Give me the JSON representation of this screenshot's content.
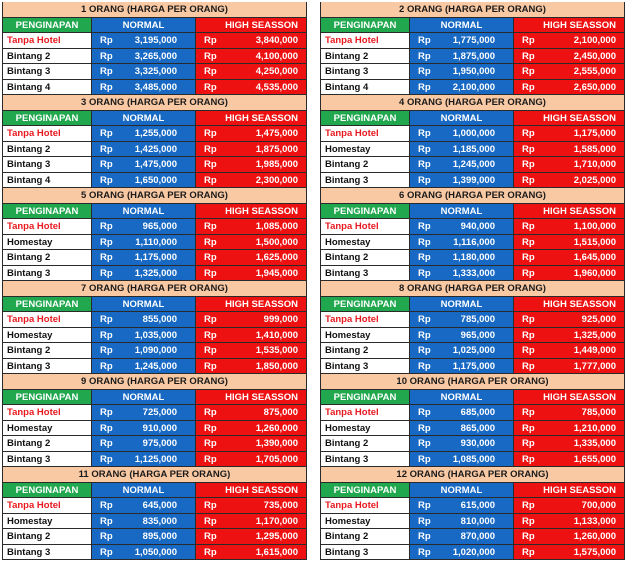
{
  "header_labels": {
    "accommodation": "PENGINAPAN",
    "normal": "NORMAL",
    "high_season": "HIGH SEASSON",
    "currency": "Rp"
  },
  "tables": [
    {
      "title": "1 ORANG (HARGA PER ORANG)",
      "rows": [
        {
          "name": "Tanpa Hotel",
          "normal": "3,195,000",
          "high": "3,840,000"
        },
        {
          "name": "Bintang 2",
          "normal": "3,265,000",
          "high": "4,100,000"
        },
        {
          "name": "Bintang 3",
          "normal": "3,325,000",
          "high": "4,250,000"
        },
        {
          "name": "Bintang 4",
          "normal": "3,485,000",
          "high": "4,535,000"
        }
      ]
    },
    {
      "title": "2 ORANG (HARGA PER ORANG)",
      "rows": [
        {
          "name": "Tanpa Hotel",
          "normal": "1,775,000",
          "high": "2,100,000"
        },
        {
          "name": "Bintang 2",
          "normal": "1,875,000",
          "high": "2,450,000"
        },
        {
          "name": "Bintang 3",
          "normal": "1,950,000",
          "high": "2,555,000"
        },
        {
          "name": "Bintang 4",
          "normal": "2,100,000",
          "high": "2,650,000"
        }
      ]
    },
    {
      "title": "3 ORANG (HARGA PER ORANG)",
      "rows": [
        {
          "name": "Tanpa Hotel",
          "normal": "1,255,000",
          "high": "1,475,000"
        },
        {
          "name": "Bintang 2",
          "normal": "1,425,000",
          "high": "1,875,000"
        },
        {
          "name": "Bintang 3",
          "normal": "1,475,000",
          "high": "1,985,000"
        },
        {
          "name": "Bintang 4",
          "normal": "1,650,000",
          "high": "2,300,000"
        }
      ]
    },
    {
      "title": "4 ORANG (HARGA PER ORANG)",
      "rows": [
        {
          "name": "Tanpa Hotel",
          "normal": "1,000,000",
          "high": "1,175,000"
        },
        {
          "name": "Homestay",
          "normal": "1,185,000",
          "high": "1,585,000"
        },
        {
          "name": "Bintang 2",
          "normal": "1,245,000",
          "high": "1,710,000"
        },
        {
          "name": "Bintang 3",
          "normal": "1,399,000",
          "high": "2,025,000"
        }
      ]
    },
    {
      "title": "5 ORANG (HARGA PER ORANG)",
      "rows": [
        {
          "name": "Tanpa Hotel",
          "normal": "965,000",
          "high": "1,085,000"
        },
        {
          "name": "Homestay",
          "normal": "1,110,000",
          "high": "1,500,000"
        },
        {
          "name": "Bintang 2",
          "normal": "1,175,000",
          "high": "1,625,000"
        },
        {
          "name": "Bintang 3",
          "normal": "1,325,000",
          "high": "1,945,000"
        }
      ]
    },
    {
      "title": "6 ORANG (HARGA PER ORANG)",
      "rows": [
        {
          "name": "Tanpa Hotel",
          "normal": "940,000",
          "high": "1,100,000"
        },
        {
          "name": "Homestay",
          "normal": "1,116,000",
          "high": "1,515,000"
        },
        {
          "name": "Bintang 2",
          "normal": "1,180,000",
          "high": "1,645,000"
        },
        {
          "name": "Bintang 3",
          "normal": "1,333,000",
          "high": "1,960,000"
        }
      ]
    },
    {
      "title": "7 ORANG (HARGA PER ORANG)",
      "rows": [
        {
          "name": "Tanpa Hotel",
          "normal": "855,000",
          "high": "999,000"
        },
        {
          "name": "Homestay",
          "normal": "1,035,000",
          "high": "1,410,000"
        },
        {
          "name": "Bintang 2",
          "normal": "1,090,000",
          "high": "1,535,000"
        },
        {
          "name": "Bintang 3",
          "normal": "1,245,000",
          "high": "1,850,000"
        }
      ]
    },
    {
      "title": "8 ORANG (HARGA PER ORANG)",
      "rows": [
        {
          "name": "Tanpa Hotel",
          "normal": "785,000",
          "high": "925,000"
        },
        {
          "name": "Homestay",
          "normal": "965,000",
          "high": "1,325,000"
        },
        {
          "name": "Bintang 2",
          "normal": "1,025,000",
          "high": "1,449,000"
        },
        {
          "name": "Bintang 3",
          "normal": "1,175,000",
          "high": "1,777,000"
        }
      ]
    },
    {
      "title": "9 ORANG (HARGA PER ORANG)",
      "rows": [
        {
          "name": "Tanpa Hotel",
          "normal": "725,000",
          "high": "875,000"
        },
        {
          "name": "Homestay",
          "normal": "910,000",
          "high": "1,260,000"
        },
        {
          "name": "Bintang 2",
          "normal": "975,000",
          "high": "1,390,000"
        },
        {
          "name": "Bintang 3",
          "normal": "1,125,000",
          "high": "1,705,000"
        }
      ]
    },
    {
      "title": "10 ORANG (HARGA PER ORANG)",
      "rows": [
        {
          "name": "Tanpa Hotel",
          "normal": "685,000",
          "high": "785,000"
        },
        {
          "name": "Homestay",
          "normal": "865,000",
          "high": "1,210,000"
        },
        {
          "name": "Bintang 2",
          "normal": "930,000",
          "high": "1,335,000"
        },
        {
          "name": "Bintang 3",
          "normal": "1,085,000",
          "high": "1,655,000"
        }
      ]
    },
    {
      "title": "11 ORANG (HARGA PER ORANG)",
      "rows": [
        {
          "name": "Tanpa Hotel",
          "normal": "645,000",
          "high": "735,000"
        },
        {
          "name": "Homestay",
          "normal": "835,000",
          "high": "1,170,000"
        },
        {
          "name": "Bintang 2",
          "normal": "895,000",
          "high": "1,295,000"
        },
        {
          "name": "Bintang 3",
          "normal": "1,050,000",
          "high": "1,615,000"
        }
      ]
    },
    {
      "title": "12 ORANG (HARGA PER ORANG)",
      "rows": [
        {
          "name": "Tanpa Hotel",
          "normal": "615,000",
          "high": "700,000"
        },
        {
          "name": "Homestay",
          "normal": "810,000",
          "high": "1,133,000"
        },
        {
          "name": "Bintang 2",
          "normal": "870,000",
          "high": "1,260,000"
        },
        {
          "name": "Bintang 3",
          "normal": "1,020,000",
          "high": "1,575,000"
        }
      ]
    }
  ],
  "colors": {
    "title_bg": "#f9c9a4",
    "accommodation_header": "#21a84f",
    "normal_column": "#1769c4",
    "high_season_column": "#ee1111",
    "no_hotel_text": "#e8191f"
  }
}
